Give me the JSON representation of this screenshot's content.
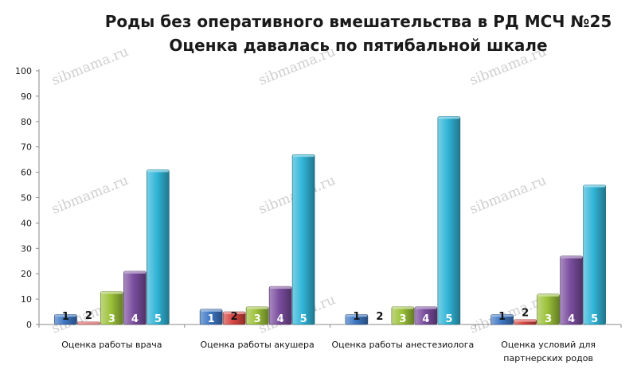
{
  "watermark": "sibmama.ru",
  "chart_data": {
    "type": "bar",
    "title": [
      "Роды без оперативного вмешательства в РД МСЧ №25",
      "Оценка давалась по пятибальной шкале"
    ],
    "categories": [
      [
        "Оценка работы врача"
      ],
      [
        "Оценка работы акушера"
      ],
      [
        "Оценка работы анестезиолога"
      ],
      [
        "Оценка условий для",
        "партнерских родов"
      ]
    ],
    "ylim": [
      0,
      100
    ],
    "yticks": [
      0,
      10,
      20,
      30,
      40,
      50,
      60,
      70,
      80,
      90,
      100
    ],
    "grid": false,
    "series": [
      {
        "label": "1",
        "color": "#3e77c4",
        "values": [
          4,
          6,
          4,
          4
        ]
      },
      {
        "label": "2",
        "color": "#d64541",
        "values": [
          1,
          5,
          0,
          2
        ]
      },
      {
        "label": "3",
        "color": "#9cc23a",
        "values": [
          13,
          7,
          7,
          12
        ]
      },
      {
        "label": "4",
        "color": "#7a4d9e",
        "values": [
          21,
          15,
          7,
          27
        ]
      },
      {
        "label": "5",
        "color": "#31b5d8",
        "values": [
          61,
          67,
          82,
          55
        ]
      }
    ]
  }
}
